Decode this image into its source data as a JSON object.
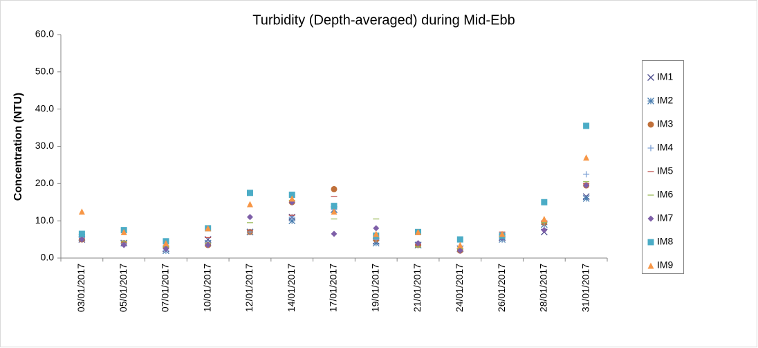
{
  "chart_data": {
    "type": "scatter",
    "title": "Turbidity (Depth-averaged) during Mid-Ebb",
    "y_label": "Concentration (NTU)",
    "categories": [
      "03/01/2017",
      "05/01/2017",
      "07/01/2017",
      "10/01/2017",
      "12/01/2017",
      "14/01/2017",
      "17/01/2017",
      "19/01/2017",
      "21/01/2017",
      "24/01/2017",
      "26/01/2017",
      "28/01/2017",
      "31/01/2017"
    ],
    "ylim": [
      0,
      60
    ],
    "yticks": [
      {
        "value": 0,
        "label": "0.0"
      },
      {
        "value": 10,
        "label": "10.0"
      },
      {
        "value": 20,
        "label": "20.0"
      },
      {
        "value": 30,
        "label": "30.0"
      },
      {
        "value": 40,
        "label": "40.0"
      },
      {
        "value": 50,
        "label": "50.0"
      },
      {
        "value": 60,
        "label": "60.0"
      }
    ],
    "grid": false,
    "legend": "right",
    "series": [
      {
        "name": "IM1",
        "color": "#4a4a8c",
        "marker": "x",
        "values": [
          5,
          4,
          2.5,
          5,
          7,
          11,
          13,
          4.5,
          3.5,
          2.5,
          5.5,
          7,
          16.5
        ]
      },
      {
        "name": "IM2",
        "color": "#4a7eb0",
        "marker": "star",
        "values": [
          5.5,
          4,
          2,
          4,
          7,
          10,
          13,
          4,
          3.5,
          2.5,
          5,
          9,
          16
        ]
      },
      {
        "name": "IM3",
        "color": "#c0703a",
        "marker": "circle",
        "values": [
          5,
          4,
          3,
          3.5,
          7,
          15,
          18.5,
          5,
          3.5,
          2,
          6,
          9.5,
          19.5
        ]
      },
      {
        "name": "IM4",
        "color": "#7b9fd4",
        "marker": "plus",
        "values": [
          5.5,
          4,
          2,
          4,
          7,
          11,
          13,
          5,
          3.5,
          2.5,
          5.5,
          9.5,
          22.5
        ]
      },
      {
        "name": "IM5",
        "color": "#c0504d",
        "marker": "dash",
        "values": [
          5,
          4.5,
          3,
          5.5,
          7.5,
          11.5,
          16.5,
          5.5,
          3.5,
          2.5,
          7,
          10,
          20
        ]
      },
      {
        "name": "IM6",
        "color": "#9bbb59",
        "marker": "dash",
        "values": [
          5,
          4.5,
          3,
          4,
          9.5,
          15.5,
          10.5,
          10.5,
          3,
          2.5,
          5.5,
          9.5,
          20.5
        ]
      },
      {
        "name": "IM7",
        "color": "#7e5fa8",
        "marker": "diamond",
        "values": [
          5,
          3.5,
          2.5,
          3.5,
          11,
          15,
          6.5,
          8,
          4,
          2,
          5.5,
          7.5,
          19.5
        ]
      },
      {
        "name": "IM8",
        "color": "#4bacc6",
        "marker": "square",
        "values": [
          6.5,
          7.5,
          4.5,
          8,
          17.5,
          17,
          14,
          6,
          7,
          5,
          6,
          15,
          35.5
        ]
      },
      {
        "name": "IM9",
        "color": "#f79646",
        "marker": "triangle",
        "values": [
          12.5,
          7,
          4,
          8,
          14.5,
          16,
          12.5,
          6.5,
          7,
          3.5,
          6.5,
          10.5,
          27
        ]
      }
    ]
  }
}
